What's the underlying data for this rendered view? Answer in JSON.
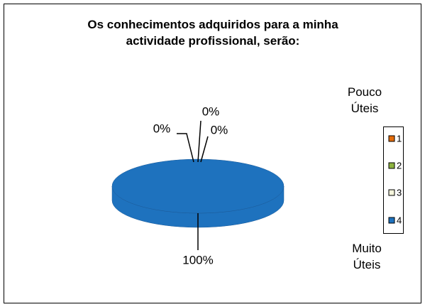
{
  "chart_data": {
    "type": "pie",
    "title": "Os conhecimentos adquiridos para a minha actividade profissional, serão:",
    "categories": [
      "1",
      "2",
      "3",
      "4"
    ],
    "values": [
      0,
      0,
      0,
      100
    ],
    "value_labels": [
      "0%",
      "0%",
      "0%",
      "100%"
    ],
    "colors": [
      "#e46c0a",
      "#8db33f",
      "#f5f5dc",
      "#1e72be"
    ],
    "annotations": [
      "Pouco Úteis",
      "Muito Úteis"
    ],
    "legend": "right"
  }
}
